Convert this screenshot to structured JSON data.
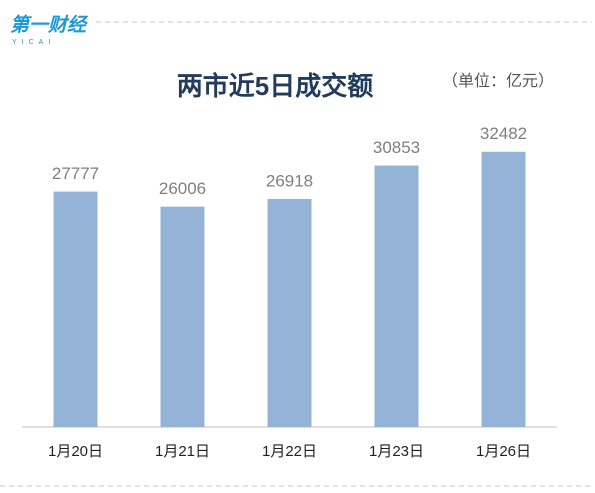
{
  "logo": {
    "name": "第一财经",
    "sub": "YICAI"
  },
  "chart_data": {
    "type": "bar",
    "title": "两市近5日成交额",
    "unit": "（单位：亿元）",
    "categories": [
      "1月20日",
      "1月21日",
      "1月22日",
      "1月23日",
      "1月26日"
    ],
    "values": [
      27777,
      26006,
      26918,
      30853,
      32482
    ],
    "color": "#95b3d7",
    "ylim": [
      0,
      38000
    ],
    "grid": false
  }
}
